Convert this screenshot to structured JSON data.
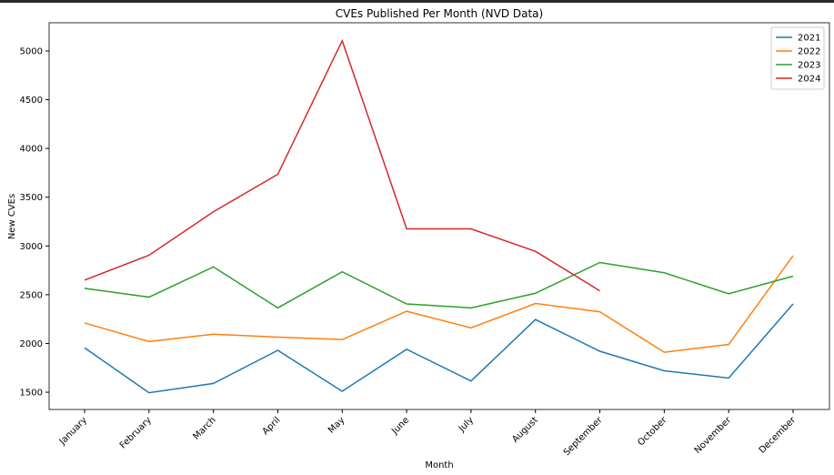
{
  "chart_data": {
    "type": "line",
    "title": "CVEs Published Per Month (NVD Data)",
    "x_label": "Month",
    "y_label": "New CVEs",
    "categories": [
      "January",
      "February",
      "March",
      "April",
      "May",
      "June",
      "July",
      "August",
      "September",
      "October",
      "November",
      "December"
    ],
    "series": [
      {
        "name": "2021",
        "color": "#1f77b4",
        "values": [
          1955,
          1495,
          1590,
          1930,
          1510,
          1940,
          1615,
          2245,
          1920,
          1720,
          1645,
          2405
        ]
      },
      {
        "name": "2022",
        "color": "#ff7f0e",
        "values": [
          2210,
          2020,
          2095,
          2065,
          2040,
          2330,
          2160,
          2410,
          2325,
          1910,
          1990,
          2900
        ]
      },
      {
        "name": "2023",
        "color": "#2ca02c",
        "values": [
          2565,
          2475,
          2785,
          2365,
          2735,
          2405,
          2365,
          2515,
          2830,
          2725,
          2510,
          2690
        ]
      },
      {
        "name": "2024",
        "color": "#d62728",
        "values": [
          2650,
          2905,
          3350,
          3735,
          5105,
          3175,
          3175,
          2945,
          2540,
          null,
          null,
          null
        ]
      }
    ],
    "ylim": [
      1323,
      5289
    ],
    "yticks": [
      1500,
      2000,
      2500,
      3000,
      3500,
      4000,
      4500,
      5000
    ],
    "legend": "upper right"
  }
}
